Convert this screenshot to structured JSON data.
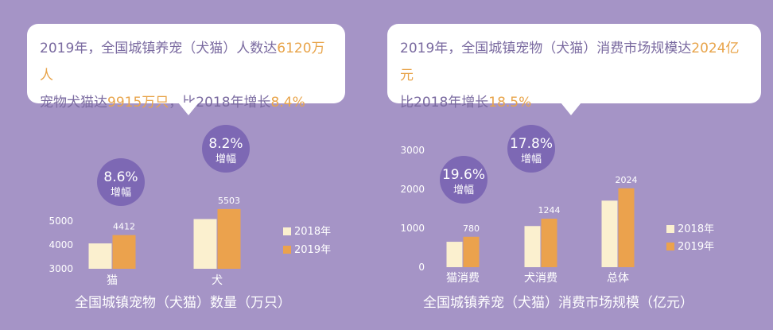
{
  "callouts": {
    "left": {
      "line1_a": "2019年，全国城镇养宠（犬猫）人数达",
      "line1_hl": "6120万人",
      "line2_a": "宠物犬猫达",
      "line2_hl1": "9915万只",
      "line2_b": "，比2018年增长",
      "line2_hl2": "8.4%"
    },
    "right": {
      "line1_a": "2019年，全国城镇宠物（犬猫）消费市场规模达",
      "line1_hl": "2024亿元",
      "line2_a": "比2018年增长",
      "line2_hl": "18.5%"
    }
  },
  "colors": {
    "background": "#a594c6",
    "bar_2018": "#fbf0cf",
    "bar_2019": "#eba24d",
    "circle": "#7d68b4",
    "highlight": "#e8a44a"
  },
  "chart_data": [
    {
      "type": "bar",
      "title": "全国城镇宠物（犬猫）数量（万只）",
      "categories": [
        "猫",
        "犬"
      ],
      "series": [
        {
          "name": "2018年",
          "values": [
            4063,
            5085
          ]
        },
        {
          "name": "2019年",
          "values": [
            4412,
            5503
          ]
        }
      ],
      "data_labels": [
        "4412",
        "5503"
      ],
      "growth_labels": [
        {
          "value": "8.6%",
          "text": "增幅"
        },
        {
          "value": "8.2%",
          "text": "增幅"
        }
      ],
      "yticks": [
        "3000",
        "4000",
        "5000"
      ],
      "ylim": [
        3000,
        5600
      ],
      "legend": "right",
      "grid": false
    },
    {
      "type": "bar",
      "title": "全国城镇养宠（犬猫）消费市场规模（亿元）",
      "categories": [
        "猫消费",
        "犬消费",
        "总体"
      ],
      "series": [
        {
          "name": "2018年",
          "values": [
            652,
            1056,
            1708
          ]
        },
        {
          "name": "2019年",
          "values": [
            780,
            1244,
            2024
          ]
        }
      ],
      "data_labels": [
        "780",
        "1244",
        "2024"
      ],
      "growth_labels": [
        {
          "value": "19.6%",
          "text": "增幅"
        },
        {
          "value": "17.8%",
          "text": "增幅"
        }
      ],
      "yticks": [
        "0",
        "1000",
        "2000",
        "3000"
      ],
      "ylim": [
        0,
        3000
      ],
      "legend": "right",
      "grid": false
    }
  ]
}
